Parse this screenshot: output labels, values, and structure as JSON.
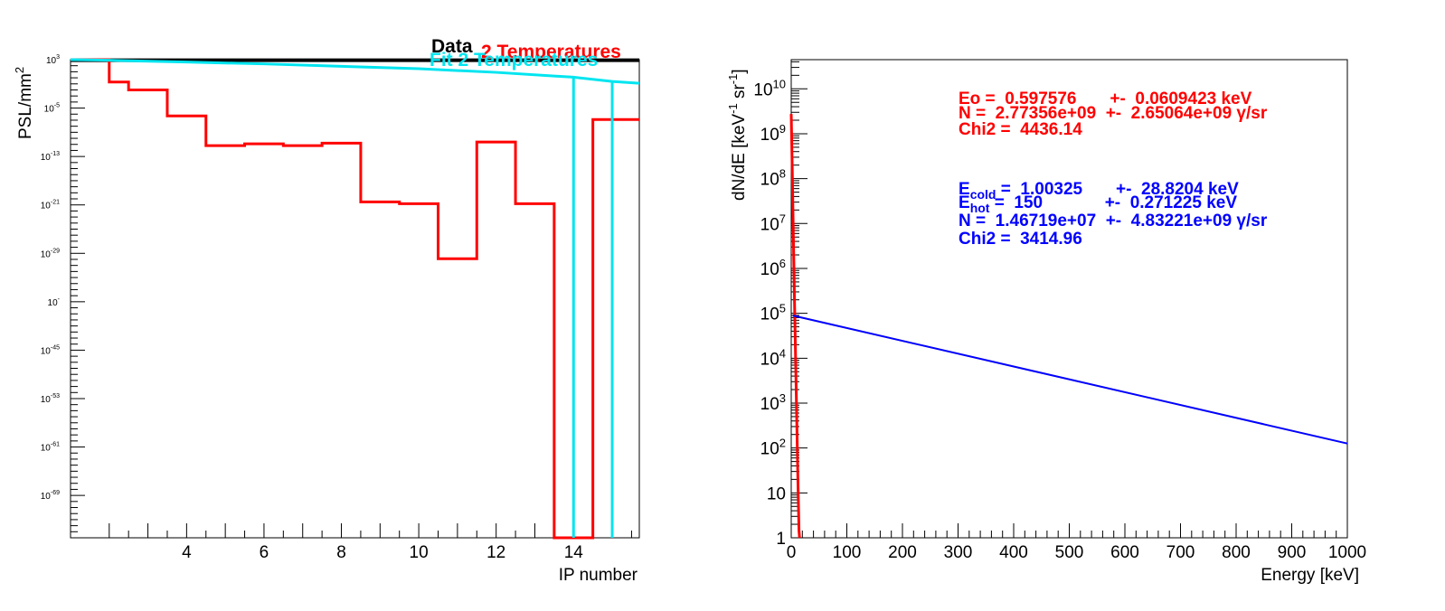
{
  "chart_data": [
    {
      "type": "line",
      "xlabel": "IP number",
      "ylabel": "PSL/mm",
      "ylabel_sup": "2",
      "x_range": [
        1.0,
        15.7
      ],
      "y_log": true,
      "ylim_exp": [
        -76,
        3
      ],
      "x_tick_labels": [
        "4",
        "6",
        "8",
        "10",
        "12",
        "14"
      ],
      "x_tick_values": [
        4,
        6,
        8,
        10,
        12,
        14
      ],
      "y_tick_labels": [
        {
          "base": "10",
          "exp": "3",
          "value": 3
        },
        {
          "base": "10",
          "exp": "-5",
          "value": -5
        },
        {
          "base": "10",
          "exp": "-13",
          "value": -13
        },
        {
          "base": "10",
          "exp": "-21",
          "value": -21
        },
        {
          "base": "10",
          "exp": "-29",
          "value": -29
        },
        {
          "base": "10",
          "exp": "-",
          "value": -37
        },
        {
          "base": "10",
          "exp": "-45",
          "value": -45
        },
        {
          "base": "10",
          "exp": "-53",
          "value": -53
        },
        {
          "base": "10",
          "exp": "-61",
          "value": -61
        },
        {
          "base": "10",
          "exp": "-69",
          "value": -69
        }
      ],
      "legend": [
        "Data",
        "2 Temperatures",
        "Fit 2 Temperatures"
      ],
      "colors": {
        "data": "#000000",
        "two_temp": "#ff0000",
        "fit": "#00e5f0"
      },
      "series": [
        {
          "name": "Data",
          "style": "line",
          "x": [
            1.0,
            15.7
          ],
          "log_y": [
            2.9,
            2.9
          ]
        },
        {
          "name": "2 Temperatures",
          "style": "step",
          "x_edges": [
            1.0,
            2.0,
            2.5,
            3.5,
            4.5,
            5.5,
            6.5,
            7.5,
            8.5,
            9.5,
            10.5,
            11.5,
            12.5,
            13.5,
            14.5,
            15.7
          ],
          "log_y": [
            3,
            -0.7,
            -2.0,
            -6.3,
            -11.2,
            -10.9,
            -11.2,
            -10.8,
            -20.5,
            -20.8,
            -29.9,
            -10.6,
            -20.8,
            -76,
            -6.9
          ]
        },
        {
          "name": "Fit 2 Temperatures",
          "style": "curve",
          "x": [
            1.0,
            2.0,
            4.0,
            6.0,
            8.0,
            10.0,
            12.0,
            13.5,
            14.0,
            15.0,
            15.7
          ],
          "log_y": [
            3.0,
            2.9,
            2.6,
            2.3,
            1.9,
            1.5,
            0.9,
            0.3,
            0.1,
            -0.6,
            -0.9
          ],
          "dips_at_x": [
            14.0,
            15.0
          ]
        }
      ]
    },
    {
      "type": "line",
      "xlabel": "Energy [keV]",
      "ylabel": "dN/dE [keV",
      "ylabel_sup1": "-1",
      "ylabel_mid": " sr",
      "ylabel_sup2": "-1",
      "ylabel_end": "]",
      "x_range": [
        0,
        1000
      ],
      "y_log": true,
      "ylim_exp": [
        0,
        10.65
      ],
      "x_tick_labels": [
        "0",
        "100",
        "200",
        "300",
        "400",
        "500",
        "600",
        "700",
        "800",
        "900",
        "1000"
      ],
      "x_tick_values": [
        0,
        100,
        200,
        300,
        400,
        500,
        600,
        700,
        800,
        900,
        1000
      ],
      "y_tick_labels": [
        {
          "base": "1",
          "exp": "",
          "value": 0
        },
        {
          "base": "10",
          "exp": "",
          "value": 1
        },
        {
          "base": "10",
          "exp": "2",
          "value": 2
        },
        {
          "base": "10",
          "exp": "3",
          "value": 3
        },
        {
          "base": "10",
          "exp": "4",
          "value": 4
        },
        {
          "base": "10",
          "exp": "5",
          "value": 5
        },
        {
          "base": "10",
          "exp": "6",
          "value": 6
        },
        {
          "base": "10",
          "exp": "7",
          "value": 7
        },
        {
          "base": "10",
          "exp": "8",
          "value": 8
        },
        {
          "base": "10",
          "exp": "9",
          "value": 9
        },
        {
          "base": "10",
          "exp": "10",
          "value": 10
        }
      ],
      "colors": {
        "one_temp": "#ff0000",
        "two_temp": "#0000ff"
      },
      "series": [
        {
          "style": "curve",
          "x": [
            0,
            2,
            4,
            6,
            8,
            10,
            12,
            14,
            15
          ],
          "log_y": [
            9.44,
            8.1,
            6.6,
            5.2,
            3.9,
            2.6,
            1.3,
            0.15,
            -0.5
          ]
        },
        {
          "style": "line",
          "x": [
            3,
            1000
          ],
          "log_y": [
            4.95,
            2.1
          ]
        }
      ],
      "annotations": {
        "fit1": {
          "line1": "Eo =  0.597576       +-  0.0609423 keV",
          "line2": "N =  2.77356e+09  +-  2.65064e+09 γ/sr",
          "line3": "Chi2 =  4436.14"
        },
        "fit2": {
          "line1_pre": "E",
          "line1_sub": "cold",
          "line1_post": " =  1.00325       +-  28.8204 keV",
          "line2_pre": "E",
          "line2_sub": "hot",
          "line2_post": " =  150             +-  0.271225 keV",
          "line3": "N =  1.46719e+07  +-  4.83221e+09 γ/sr",
          "line4": "Chi2 =  3414.96"
        }
      }
    }
  ]
}
